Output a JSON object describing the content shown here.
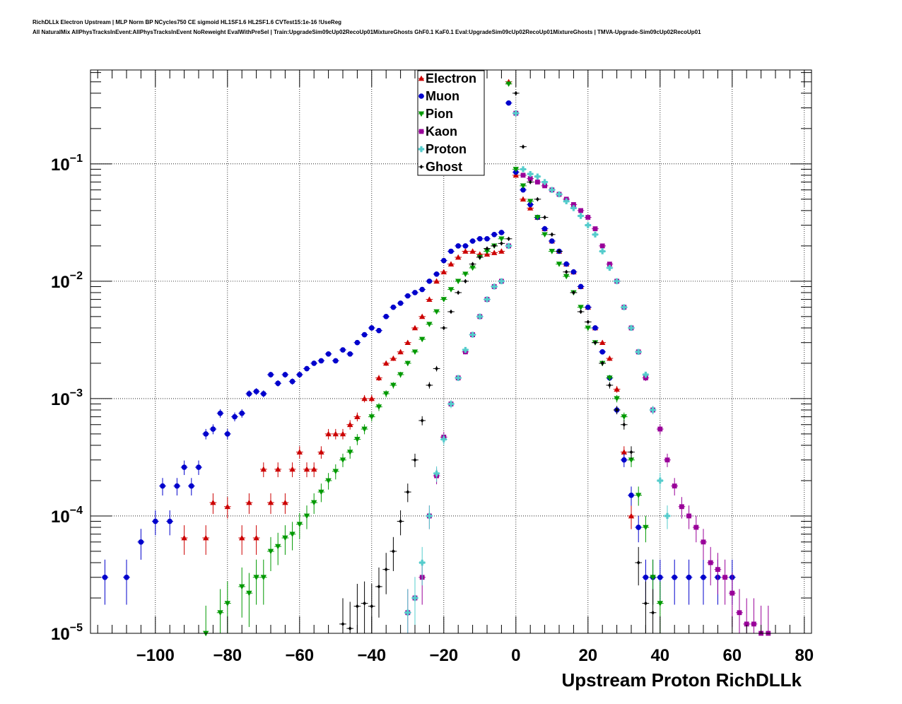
{
  "header": {
    "title_line1": "RichDLLk Electron Upstream | MLP Norm BP NCycles750 CE sigmoid HL1SF1.6 HL2SF1.6 CVTest15:1e-16 !UseReg",
    "title_line2": "All NaturalMix AllPhysTracksInEvent:AllPhysTracksInEvent NoReweight EvalWithPreSel | Train:UpgradeSim09cUp02RecoUp01MixtureGhosts GhF0.1 KaF0.1 Eval:UpgradeSim09cUp02RecoUp01MixtureGhosts | TMVA-Upgrade-Sim09cUp02RecoUp01"
  },
  "chart_data": {
    "type": "scatter",
    "xlabel": "Upstream Proton RichDLLk",
    "ylabel": "",
    "xlim": [
      -118,
      82
    ],
    "ylim_log10": [
      -5,
      -0.2
    ],
    "log_y": true,
    "grid": true,
    "legend_position": "top-center",
    "x_ticks": [
      -100,
      -80,
      -60,
      -40,
      -20,
      0,
      20,
      40,
      60,
      80
    ],
    "x_tick_labels": [
      "−100",
      "−80",
      "−60",
      "−40",
      "−20",
      "0",
      "20",
      "40",
      "60",
      "80"
    ],
    "y_ticks": [
      -1,
      -2,
      -3,
      -4,
      -5
    ],
    "y_tick_labels": [
      {
        "base": "10",
        "exp": "−1"
      },
      {
        "base": "10",
        "exp": "−2"
      },
      {
        "base": "10",
        "exp": "−3"
      },
      {
        "base": "10",
        "exp": "−4"
      },
      {
        "base": "10",
        "exp": "−5"
      }
    ],
    "series": [
      {
        "name": "Electron",
        "color": "#cc0000",
        "marker": "triangle-up",
        "x": [
          -92,
          -86,
          -84,
          -80,
          -76,
          -74,
          -72,
          -70,
          -68,
          -66,
          -64,
          -62,
          -60,
          -58,
          -56,
          -54,
          -52,
          -50,
          -48,
          -46,
          -44,
          -42,
          -40,
          -38,
          -36,
          -34,
          -32,
          -30,
          -28,
          -26,
          -24,
          -22,
          -20,
          -18,
          -16,
          -14,
          -12,
          -10,
          -8,
          -6,
          -4,
          -2,
          0,
          2,
          4,
          6,
          8,
          10,
          12,
          14,
          16,
          18,
          20,
          22,
          24,
          26,
          28,
          30,
          32
        ],
        "y": [
          6.5e-05,
          6.5e-05,
          0.00013,
          0.00012,
          6.5e-05,
          0.00013,
          6.5e-05,
          0.00025,
          0.00013,
          0.00025,
          0.00013,
          0.00025,
          0.00035,
          0.00025,
          0.00025,
          0.00035,
          0.0005,
          0.0005,
          0.0005,
          0.0006,
          0.0007,
          0.001,
          0.001,
          0.0015,
          0.002,
          0.0022,
          0.0025,
          0.003,
          0.004,
          0.005,
          0.007,
          0.01,
          0.012,
          0.014,
          0.016,
          0.018,
          0.018,
          0.017,
          0.017,
          0.0175,
          0.018,
          0.5,
          0.08,
          0.05,
          0.042,
          0.035,
          0.028,
          0.022,
          0.018,
          0.014,
          0.012,
          0.009,
          0.006,
          0.004,
          0.003,
          0.0022,
          0.0012,
          0.00035,
          0.0001
        ]
      },
      {
        "name": "Muon",
        "color": "#0000cc",
        "marker": "circle",
        "x": [
          -114,
          -108,
          -104,
          -100,
          -98,
          -96,
          -94,
          -92,
          -90,
          -88,
          -86,
          -84,
          -82,
          -80,
          -78,
          -76,
          -74,
          -72,
          -70,
          -68,
          -66,
          -64,
          -62,
          -60,
          -58,
          -56,
          -54,
          -52,
          -50,
          -48,
          -46,
          -44,
          -42,
          -40,
          -38,
          -36,
          -34,
          -32,
          -30,
          -28,
          -26,
          -24,
          -22,
          -20,
          -18,
          -16,
          -14,
          -12,
          -10,
          -8,
          -6,
          -4,
          -2,
          0,
          2,
          4,
          6,
          8,
          10,
          12,
          14,
          16,
          18,
          20,
          22,
          24,
          26,
          28,
          30,
          32,
          34,
          36,
          38,
          40,
          44,
          48,
          52,
          56,
          60
        ],
        "y": [
          3e-05,
          3e-05,
          6e-05,
          9e-05,
          0.00018,
          9e-05,
          0.00018,
          0.00026,
          0.00018,
          0.00026,
          0.0005,
          0.00055,
          0.00075,
          0.0005,
          0.0007,
          0.00075,
          0.0011,
          0.00115,
          0.0011,
          0.0016,
          0.00135,
          0.0016,
          0.0014,
          0.0016,
          0.0018,
          0.002,
          0.0021,
          0.0024,
          0.0021,
          0.0026,
          0.0024,
          0.003,
          0.0035,
          0.004,
          0.0038,
          0.005,
          0.006,
          0.0065,
          0.0075,
          0.008,
          0.0085,
          0.01,
          0.0115,
          0.015,
          0.018,
          0.02,
          0.02,
          0.022,
          0.023,
          0.023,
          0.025,
          0.026,
          0.33,
          0.085,
          0.06,
          0.045,
          0.035,
          0.028,
          0.022,
          0.018,
          0.014,
          0.012,
          0.009,
          0.006,
          0.004,
          0.0025,
          0.0015,
          0.0008,
          0.0003,
          0.00015,
          8e-05,
          3e-05,
          3e-05,
          3e-05,
          3e-05,
          3e-05,
          3e-05,
          3e-05,
          3e-05
        ]
      },
      {
        "name": "Pion",
        "color": "#009900",
        "marker": "triangle-down",
        "x": [
          -86,
          -82,
          -80,
          -76,
          -74,
          -72,
          -70,
          -68,
          -66,
          -64,
          -62,
          -60,
          -58,
          -56,
          -54,
          -52,
          -50,
          -48,
          -46,
          -44,
          -42,
          -40,
          -38,
          -36,
          -34,
          -32,
          -30,
          -28,
          -26,
          -24,
          -22,
          -20,
          -18,
          -16,
          -14,
          -12,
          -10,
          -8,
          -6,
          -4,
          -2,
          0,
          2,
          4,
          6,
          8,
          10,
          12,
          14,
          16,
          18,
          20,
          22,
          24,
          26,
          28,
          30,
          32,
          34,
          36,
          38,
          40
        ],
        "y": [
          1e-05,
          1.5e-05,
          1.8e-05,
          2.5e-05,
          2.2e-05,
          3e-05,
          3e-05,
          5e-05,
          5.5e-05,
          6.5e-05,
          7e-05,
          8.5e-05,
          0.0001,
          0.00013,
          0.00016,
          0.0002,
          0.00024,
          0.0003,
          0.00035,
          0.00045,
          0.00055,
          0.0007,
          0.00085,
          0.0011,
          0.0013,
          0.0016,
          0.002,
          0.0025,
          0.0032,
          0.0043,
          0.0055,
          0.007,
          0.0085,
          0.01,
          0.0115,
          0.013,
          0.016,
          0.018,
          0.02,
          0.023,
          0.48,
          0.09,
          0.065,
          0.048,
          0.035,
          0.025,
          0.018,
          0.014,
          0.011,
          0.008,
          0.006,
          0.004,
          0.003,
          0.002,
          0.0015,
          0.001,
          0.0007,
          0.0003,
          0.00015,
          8e-05,
          3e-05,
          1.8e-05
        ]
      },
      {
        "name": "Kaon",
        "color": "#990099",
        "marker": "square",
        "x": [
          -30,
          -28,
          -26,
          -24,
          -22,
          -20,
          -18,
          -16,
          -14,
          -12,
          -10,
          -8,
          -6,
          -4,
          -2,
          0,
          2,
          4,
          6,
          8,
          10,
          12,
          14,
          16,
          18,
          20,
          22,
          24,
          26,
          28,
          30,
          32,
          34,
          36,
          38,
          40,
          42,
          44,
          46,
          48,
          50,
          52,
          54,
          56,
          58,
          60,
          62,
          64,
          66,
          68,
          70
        ],
        "y": [
          1.5e-05,
          2e-05,
          3e-05,
          0.0001,
          0.00022,
          0.00047,
          0.0009,
          0.0015,
          0.0025,
          0.0035,
          0.005,
          0.007,
          0.009,
          0.01,
          0.02,
          0.27,
          0.08,
          0.075,
          0.07,
          0.065,
          0.06,
          0.055,
          0.05,
          0.045,
          0.04,
          0.035,
          0.028,
          0.02,
          0.014,
          0.01,
          0.006,
          0.004,
          0.0025,
          0.0015,
          0.0008,
          0.00055,
          0.0003,
          0.00018,
          0.00012,
          0.0001,
          8e-05,
          6e-05,
          4e-05,
          3.5e-05,
          3e-05,
          2.2e-05,
          1.5e-05,
          1.2e-05,
          1.2e-05,
          1e-05,
          1e-05
        ]
      },
      {
        "name": "Proton",
        "color": "#55cccc",
        "marker": "cross",
        "x": [
          -30,
          -28,
          -26,
          -24,
          -22,
          -20,
          -18,
          -16,
          -14,
          -12,
          -10,
          -8,
          -6,
          -4,
          -2,
          0,
          2,
          4,
          6,
          8,
          10,
          12,
          14,
          16,
          18,
          20,
          22,
          24,
          26,
          28,
          30,
          32,
          34,
          36,
          38,
          40,
          42
        ],
        "y": [
          1.5e-05,
          2e-05,
          4e-05,
          0.0001,
          0.00023,
          0.00045,
          0.0009,
          0.0015,
          0.0026,
          0.0035,
          0.005,
          0.007,
          0.009,
          0.01,
          0.02,
          0.27,
          0.09,
          0.082,
          0.078,
          0.07,
          0.06,
          0.055,
          0.048,
          0.042,
          0.036,
          0.03,
          0.025,
          0.018,
          0.013,
          0.01,
          0.006,
          0.004,
          0.0025,
          0.0016,
          0.0008,
          0.0002,
          0.0001
        ]
      },
      {
        "name": "Ghost",
        "color": "#000000",
        "marker": "diamond",
        "x": [
          -48,
          -46,
          -44,
          -42,
          -40,
          -38,
          -36,
          -34,
          -32,
          -30,
          -28,
          -26,
          -24,
          -22,
          -20,
          -18,
          -16,
          -14,
          -12,
          -10,
          -8,
          -6,
          -4,
          -2,
          0,
          2,
          4,
          6,
          8,
          10,
          12,
          14,
          16,
          18,
          20,
          22,
          24,
          26,
          28,
          30,
          32,
          34,
          36,
          38
        ],
        "y": [
          1.2e-05,
          1.1e-05,
          1.7e-05,
          1.8e-05,
          1.7e-05,
          2.5e-05,
          3.5e-05,
          5e-05,
          9e-05,
          0.00016,
          0.0003,
          0.00065,
          0.0013,
          0.0018,
          0.004,
          0.0055,
          0.008,
          0.01,
          0.014,
          0.016,
          0.019,
          0.02,
          0.021,
          0.023,
          0.4,
          0.14,
          0.07,
          0.05,
          0.035,
          0.025,
          0.018,
          0.012,
          0.008,
          0.0055,
          0.0045,
          0.003,
          0.002,
          0.0013,
          0.0008,
          0.0006,
          0.00035,
          4e-05,
          1.8e-05,
          1.5e-05
        ]
      }
    ]
  }
}
